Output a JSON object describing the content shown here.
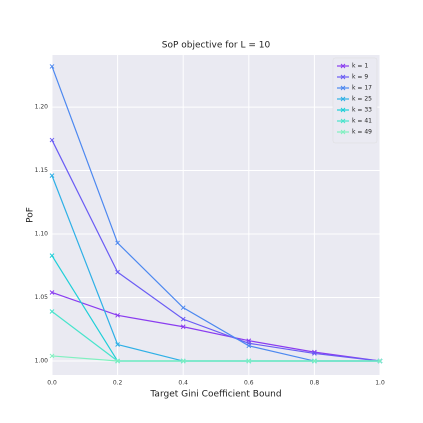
{
  "chart_data": {
    "type": "line",
    "title": "SoP objective for L = 10",
    "xlabel": "Target Gini Coefficient Bound",
    "ylabel": "PoF",
    "x": [
      0,
      0.2,
      0.4,
      0.6,
      0.8,
      1.0
    ],
    "xlim": [
      0,
      1.0
    ],
    "ylim": [
      0.989,
      1.241
    ],
    "xticks": [
      {
        "value": 0,
        "label": "0.0"
      },
      0.2,
      0.4,
      0.6,
      0.8,
      {
        "value": 1.0,
        "label": "1.0"
      }
    ],
    "yticks": [
      {
        "value": 1.0,
        "label": "1.00"
      },
      1.05,
      {
        "value": 1.1,
        "label": "1.10"
      },
      1.15,
      {
        "value": 1.2,
        "label": "1.20"
      }
    ],
    "grid": true,
    "legend": "upper right",
    "marker": "x",
    "series": [
      {
        "name": "k = 1",
        "color": "#8a3cf0",
        "values": [
          1.054,
          1.036,
          1.027,
          1.016,
          1.007,
          1.0
        ]
      },
      {
        "name": "k = 9",
        "color": "#6a5cf4",
        "values": [
          1.174,
          1.07,
          1.033,
          1.014,
          1.006,
          1.0
        ]
      },
      {
        "name": "k = 17",
        "color": "#4c88f0",
        "values": [
          1.232,
          1.093,
          1.042,
          1.012,
          1.0,
          1.0
        ]
      },
      {
        "name": "k = 25",
        "color": "#2eb0e6",
        "values": [
          1.146,
          1.013,
          1.0,
          1.0,
          1.0,
          1.0
        ]
      },
      {
        "name": "k = 33",
        "color": "#1ecfd8",
        "values": [
          1.083,
          1.0,
          1.0,
          1.0,
          1.0,
          1.0
        ]
      },
      {
        "name": "k = 41",
        "color": "#48e4cc",
        "values": [
          1.039,
          1.0,
          1.0,
          1.0,
          1.0,
          1.0
        ]
      },
      {
        "name": "k = 49",
        "color": "#80f0c0",
        "values": [
          1.004,
          1.0,
          1.0,
          1.0,
          1.0,
          1.0
        ]
      }
    ]
  }
}
